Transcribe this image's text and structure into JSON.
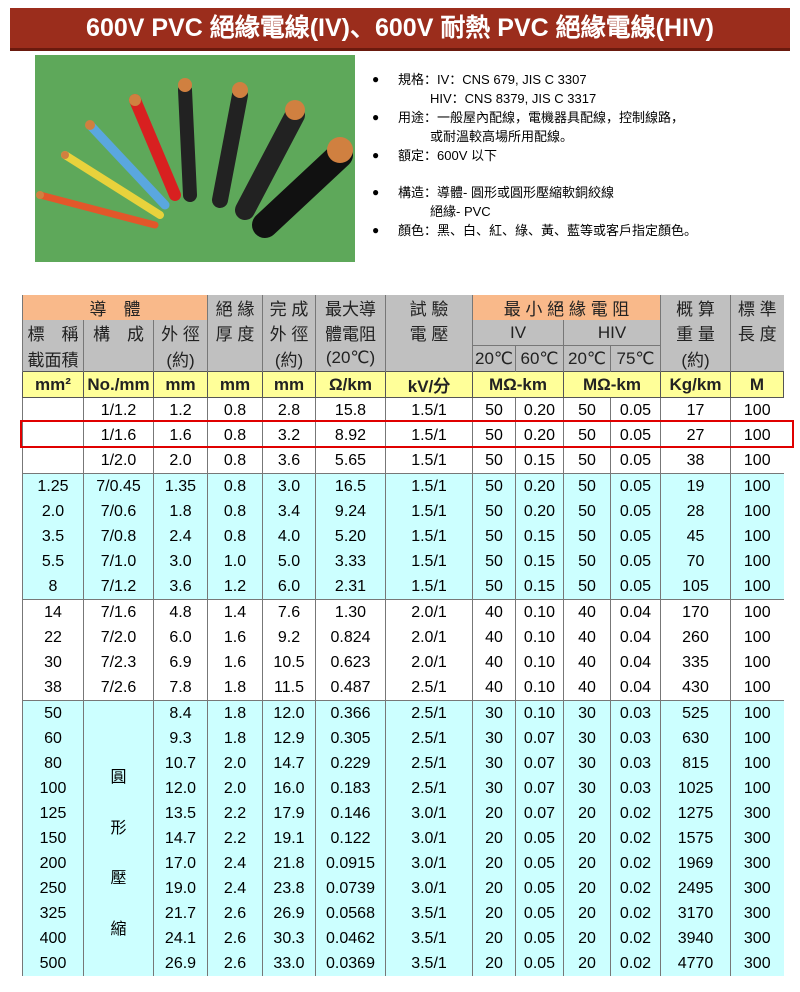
{
  "title": "600V PVC 絕緣電線(IV)、600V 耐熱 PVC 絕緣電線(HIV)",
  "specs": {
    "std_iv": "規格：IV：CNS 679, JIS C 3307",
    "std_hiv": "HIV：CNS 8379, JIS C 3317",
    "use1": "用途：一般屋內配線，電機器具配線，控制線路，",
    "use2": "或耐溫較高場所用配線。",
    "rating": "額定：600V 以下",
    "struct1": "構造：導體- 圓形或圓形壓縮軟銅絞線",
    "struct2": "絕緣- PVC",
    "colors": "顏色：黑、白、紅、綠、黃、藍等或客戶指定顏色。"
  },
  "table": {
    "h1": {
      "conductor": "導　體",
      "ins": "絕 緣",
      "comp": "完 成",
      "maxr": "最大導",
      "test": "試 驗",
      "minir": "最 小 絕 緣 電 阻",
      "wt": "概 算",
      "len": "標 準"
    },
    "h2": {
      "nom": "標　稱",
      "cons": "構　成",
      "od": "外 徑",
      "thk": "厚 度",
      "cod": "外 徑",
      "res": "體電阻",
      "volt": "電 壓",
      "iv": "IV",
      "hiv": "HIV",
      "wt": "重 量",
      "len": "長 度"
    },
    "h3": {
      "area": "截面積",
      "od": "(約)",
      "cod": "(約)",
      "res": "(20℃)",
      "iv20": "20℃",
      "iv60": "60℃",
      "hiv20": "20℃",
      "hiv75": "75℃",
      "wt": "(約)"
    },
    "units": [
      "mm²",
      "No./mm",
      "mm",
      "mm",
      "mm",
      "Ω/km",
      "kV/分",
      "MΩ-km",
      "MΩ-km",
      "Kg/km",
      "M"
    ],
    "compressed_label": [
      "圓",
      "形",
      "壓",
      "縮"
    ],
    "rows": [
      [
        "",
        "1/1.2",
        "1.2",
        "0.8",
        "2.8",
        "15.8",
        "1.5/1",
        "50",
        "0.20",
        "50",
        "0.05",
        "17",
        "100"
      ],
      [
        "",
        "1/1.6",
        "1.6",
        "0.8",
        "3.2",
        "8.92",
        "1.5/1",
        "50",
        "0.20",
        "50",
        "0.05",
        "27",
        "100"
      ],
      [
        "",
        "1/2.0",
        "2.0",
        "0.8",
        "3.6",
        "5.65",
        "1.5/1",
        "50",
        "0.15",
        "50",
        "0.05",
        "38",
        "100"
      ],
      [
        "1.25",
        "7/0.45",
        "1.35",
        "0.8",
        "3.0",
        "16.5",
        "1.5/1",
        "50",
        "0.20",
        "50",
        "0.05",
        "19",
        "100"
      ],
      [
        "2.0",
        "7/0.6",
        "1.8",
        "0.8",
        "3.4",
        "9.24",
        "1.5/1",
        "50",
        "0.20",
        "50",
        "0.05",
        "28",
        "100"
      ],
      [
        "3.5",
        "7/0.8",
        "2.4",
        "0.8",
        "4.0",
        "5.20",
        "1.5/1",
        "50",
        "0.15",
        "50",
        "0.05",
        "45",
        "100"
      ],
      [
        "5.5",
        "7/1.0",
        "3.0",
        "1.0",
        "5.0",
        "3.33",
        "1.5/1",
        "50",
        "0.15",
        "50",
        "0.05",
        "70",
        "100"
      ],
      [
        "8",
        "7/1.2",
        "3.6",
        "1.2",
        "6.0",
        "2.31",
        "1.5/1",
        "50",
        "0.15",
        "50",
        "0.05",
        "105",
        "100"
      ],
      [
        "14",
        "7/1.6",
        "4.8",
        "1.4",
        "7.6",
        "1.30",
        "2.0/1",
        "40",
        "0.10",
        "40",
        "0.04",
        "170",
        "100"
      ],
      [
        "22",
        "7/2.0",
        "6.0",
        "1.6",
        "9.2",
        "0.824",
        "2.0/1",
        "40",
        "0.10",
        "40",
        "0.04",
        "260",
        "100"
      ],
      [
        "30",
        "7/2.3",
        "6.9",
        "1.6",
        "10.5",
        "0.623",
        "2.0/1",
        "40",
        "0.10",
        "40",
        "0.04",
        "335",
        "100"
      ],
      [
        "38",
        "7/2.6",
        "7.8",
        "1.8",
        "11.5",
        "0.487",
        "2.5/1",
        "40",
        "0.10",
        "40",
        "0.04",
        "430",
        "100"
      ],
      [
        "50",
        "",
        "8.4",
        "1.8",
        "12.0",
        "0.366",
        "2.5/1",
        "30",
        "0.10",
        "30",
        "0.03",
        "525",
        "100"
      ],
      [
        "60",
        "",
        "9.3",
        "1.8",
        "12.9",
        "0.305",
        "2.5/1",
        "30",
        "0.07",
        "30",
        "0.03",
        "630",
        "100"
      ],
      [
        "80",
        "",
        "10.7",
        "2.0",
        "14.7",
        "0.229",
        "2.5/1",
        "30",
        "0.07",
        "30",
        "0.03",
        "815",
        "100"
      ],
      [
        "100",
        "",
        "12.0",
        "2.0",
        "16.0",
        "0.183",
        "2.5/1",
        "30",
        "0.07",
        "30",
        "0.03",
        "1025",
        "100"
      ],
      [
        "125",
        "",
        "13.5",
        "2.2",
        "17.9",
        "0.146",
        "3.0/1",
        "20",
        "0.07",
        "20",
        "0.02",
        "1275",
        "300"
      ],
      [
        "150",
        "",
        "14.7",
        "2.2",
        "19.1",
        "0.122",
        "3.0/1",
        "20",
        "0.05",
        "20",
        "0.02",
        "1575",
        "300"
      ],
      [
        "200",
        "",
        "17.0",
        "2.4",
        "21.8",
        "0.0915",
        "3.0/1",
        "20",
        "0.05",
        "20",
        "0.02",
        "1969",
        "300"
      ],
      [
        "250",
        "",
        "19.0",
        "2.4",
        "23.8",
        "0.0739",
        "3.0/1",
        "20",
        "0.05",
        "20",
        "0.02",
        "2495",
        "300"
      ],
      [
        "325",
        "",
        "21.7",
        "2.6",
        "26.9",
        "0.0568",
        "3.5/1",
        "20",
        "0.05",
        "20",
        "0.02",
        "3170",
        "300"
      ],
      [
        "400",
        "",
        "24.1",
        "2.6",
        "30.3",
        "0.0462",
        "3.5/1",
        "20",
        "0.05",
        "20",
        "0.02",
        "3940",
        "300"
      ],
      [
        "500",
        "",
        "26.9",
        "2.6",
        "33.0",
        "0.0369",
        "3.5/1",
        "20",
        "0.05",
        "20",
        "0.02",
        "4770",
        "300"
      ]
    ],
    "highlighted_row": 1
  }
}
